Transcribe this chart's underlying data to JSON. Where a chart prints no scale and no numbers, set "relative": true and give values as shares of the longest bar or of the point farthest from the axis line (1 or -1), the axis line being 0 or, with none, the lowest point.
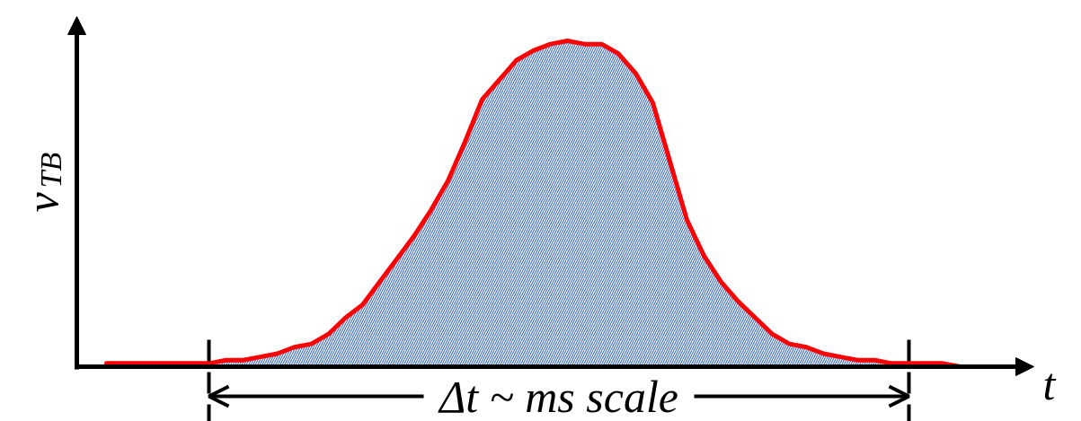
{
  "chart_data": {
    "type": "line",
    "relative": true,
    "xlabel": "t",
    "ylabel": "v$_{TB}$",
    "annotations": [
      "Δt ~ ms scale"
    ],
    "categories": [
      null,
      null,
      null,
      null,
      null,
      null,
      null,
      null,
      null,
      null,
      null,
      null,
      null,
      null,
      null,
      null,
      null,
      null,
      null,
      null,
      null,
      null,
      null,
      null,
      null,
      null,
      null,
      null,
      null,
      null,
      null,
      null,
      null,
      null,
      null,
      null,
      null,
      null,
      null,
      null,
      null,
      null,
      null,
      null,
      null,
      null,
      null,
      null,
      null,
      null,
      null,
      null,
      null
    ],
    "series": [
      {
        "type": "area",
        "color": "#4472c4",
        "values": [
          null,
          null,
          null,
          null,
          null,
          null,
          0.01,
          0.02,
          0.02,
          0.03,
          0.04,
          0.06,
          0.07,
          0.1,
          0.15,
          0.19,
          0.26,
          0.33,
          0.4,
          0.48,
          0.57,
          0.69,
          0.82,
          0.88,
          0.94,
          0.97,
          0.99,
          1.0,
          0.99,
          0.99,
          0.96,
          0.9,
          0.81,
          0.63,
          0.45,
          0.34,
          0.26,
          0.2,
          0.15,
          0.1,
          0.07,
          0.06,
          0.04,
          0.03,
          0.02,
          0.02,
          0.01,
          0.01,
          null,
          null,
          null,
          null,
          null
        ]
      },
      {
        "color": "#ff0000",
        "values": [
          0.01,
          0.01,
          0.01,
          0.01,
          0.01,
          0.01,
          0.01,
          0.02,
          0.02,
          0.03,
          0.04,
          0.06,
          0.07,
          0.1,
          0.15,
          0.19,
          0.26,
          0.33,
          0.4,
          0.48,
          0.57,
          0.69,
          0.82,
          0.88,
          0.94,
          0.97,
          0.99,
          1.0,
          0.99,
          0.99,
          0.96,
          0.9,
          0.81,
          0.63,
          0.45,
          0.34,
          0.26,
          0.2,
          0.15,
          0.1,
          0.07,
          0.06,
          0.04,
          0.03,
          0.02,
          0.02,
          0.01,
          0.01,
          0.01,
          0.01,
          0,
          0,
          0
        ]
      }
    ]
  }
}
